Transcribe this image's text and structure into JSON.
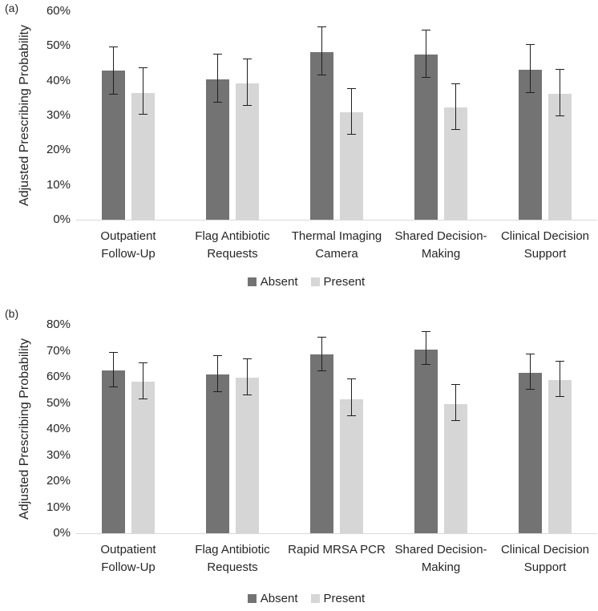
{
  "styles": {
    "background": "#ffffff",
    "absent_color": "#737373",
    "present_color": "#d6d6d6",
    "axis_line_color": "#d9d9d9",
    "error_bar_color": "#1f1f1f",
    "text_color": "#262626"
  },
  "chart_data": [
    {
      "type": "bar",
      "panel_label": "(a)",
      "title": "",
      "xlabel": "",
      "ylabel": "Adjusted Prescribing Probability",
      "ylim": [
        0,
        60
      ],
      "ytick_labels": [
        "0%",
        "10%",
        "20%",
        "30%",
        "40%",
        "50%",
        "60%"
      ],
      "grid": false,
      "legend_position": "bottom-center",
      "error_bars": true,
      "categories": [
        [
          "Outpatient",
          "Follow-Up"
        ],
        [
          "Flag Antibiotic",
          "Requests"
        ],
        [
          "Thermal Imaging",
          "Camera"
        ],
        [
          "Shared Decision-",
          "Making"
        ],
        [
          "Clinical Decision",
          "Support"
        ]
      ],
      "series": [
        {
          "name": "Absent",
          "color": "#737373",
          "values": [
            43.0,
            40.5,
            48.3,
            47.5,
            43.2
          ],
          "err_low": [
            36.0,
            33.8,
            41.5,
            40.8,
            36.4
          ],
          "err_high": [
            49.5,
            47.2,
            55.2,
            54.3,
            50.0
          ]
        },
        {
          "name": "Present",
          "color": "#d6d6d6",
          "values": [
            36.5,
            39.2,
            31.0,
            32.2,
            36.2
          ],
          "err_low": [
            30.2,
            32.7,
            24.5,
            25.8,
            29.8
          ],
          "err_high": [
            43.3,
            45.9,
            37.5,
            38.7,
            42.9
          ]
        }
      ]
    },
    {
      "type": "bar",
      "panel_label": "(b)",
      "title": "",
      "xlabel": "",
      "ylabel": "Adjusted Prescribing Probability",
      "ylim": [
        0,
        80
      ],
      "ytick_labels": [
        "0%",
        "10%",
        "20%",
        "30%",
        "40%",
        "50%",
        "60%",
        "70%",
        "80%"
      ],
      "grid": false,
      "legend_position": "bottom-center",
      "error_bars": true,
      "categories": [
        [
          "Outpatient",
          "Follow-Up"
        ],
        [
          "Flag Antibiotic",
          "Requests"
        ],
        [
          "Rapid MRSA PCR"
        ],
        [
          "Shared Decision-",
          "Making"
        ],
        [
          "Clinical Decision",
          "Support"
        ]
      ],
      "series": [
        {
          "name": "Absent",
          "color": "#737373",
          "values": [
            62.5,
            61.0,
            68.5,
            70.5,
            61.5
          ],
          "err_low": [
            56.0,
            54.3,
            62.3,
            64.6,
            55.2
          ],
          "err_high": [
            68.8,
            67.8,
            74.9,
            77.0,
            68.4
          ]
        },
        {
          "name": "Present",
          "color": "#d6d6d6",
          "values": [
            58.2,
            59.6,
            51.5,
            49.6,
            58.8
          ],
          "err_low": [
            51.4,
            52.9,
            44.8,
            43.1,
            52.4
          ],
          "err_high": [
            65.0,
            66.4,
            58.8,
            56.7,
            65.6
          ]
        }
      ]
    }
  ]
}
